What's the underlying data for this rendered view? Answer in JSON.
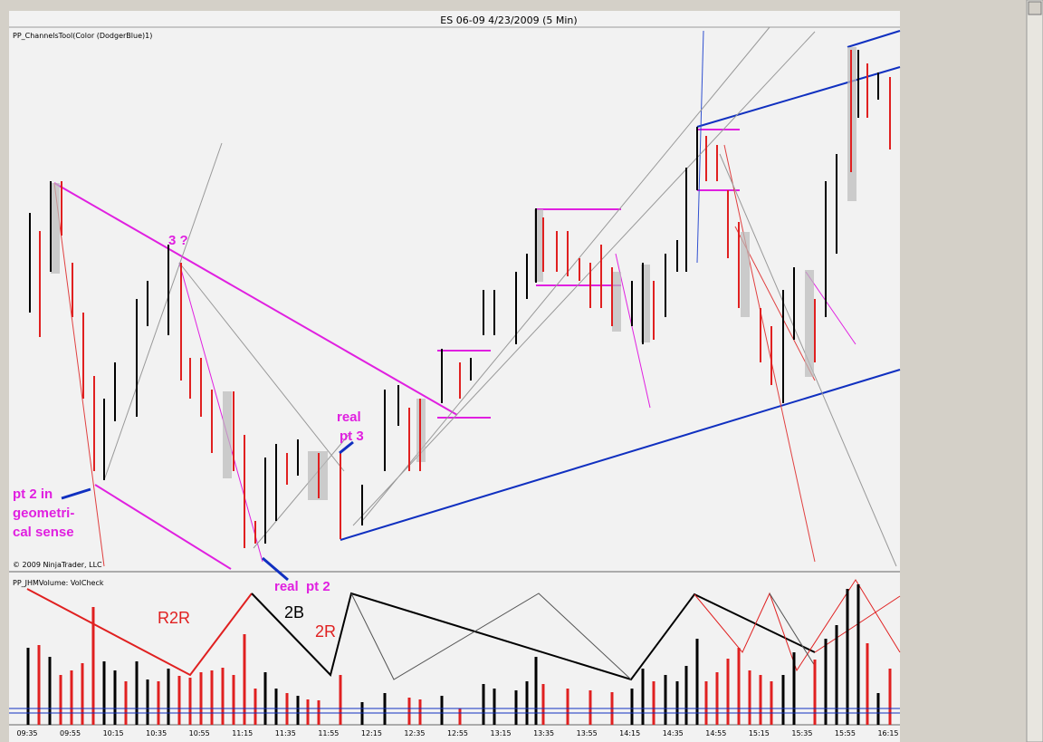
{
  "window": {
    "title": "ES 06-09  4/23/2009 (5 Min)"
  },
  "price_panel": {
    "indicator": "PP_ChannelsTool(Color (DodgerBlue)1)",
    "copyright": "© 2009 NinjaTrader, LLC",
    "annotations": {
      "three_q": "3 ?",
      "real_pt3": [
        "real",
        "pt 3"
      ],
      "pt2_geo": [
        "pt 2 in",
        "geometri-",
        "cal sense"
      ],
      "real_pt2": "real  pt 2"
    }
  },
  "volume_panel": {
    "indicator": "PP_JHMVolume: VolCheck",
    "annotations": {
      "r2r": "R2R",
      "b2": "2B",
      "r2": "2R"
    }
  },
  "time_axis": [
    "09:35",
    "09:55",
    "10:15",
    "10:35",
    "10:55",
    "11:15",
    "11:35",
    "11:55",
    "12:15",
    "12:35",
    "12:55",
    "13:15",
    "13:35",
    "13:55",
    "14:15",
    "14:35",
    "14:55",
    "15:15",
    "15:35",
    "15:55",
    "16:15"
  ]
}
